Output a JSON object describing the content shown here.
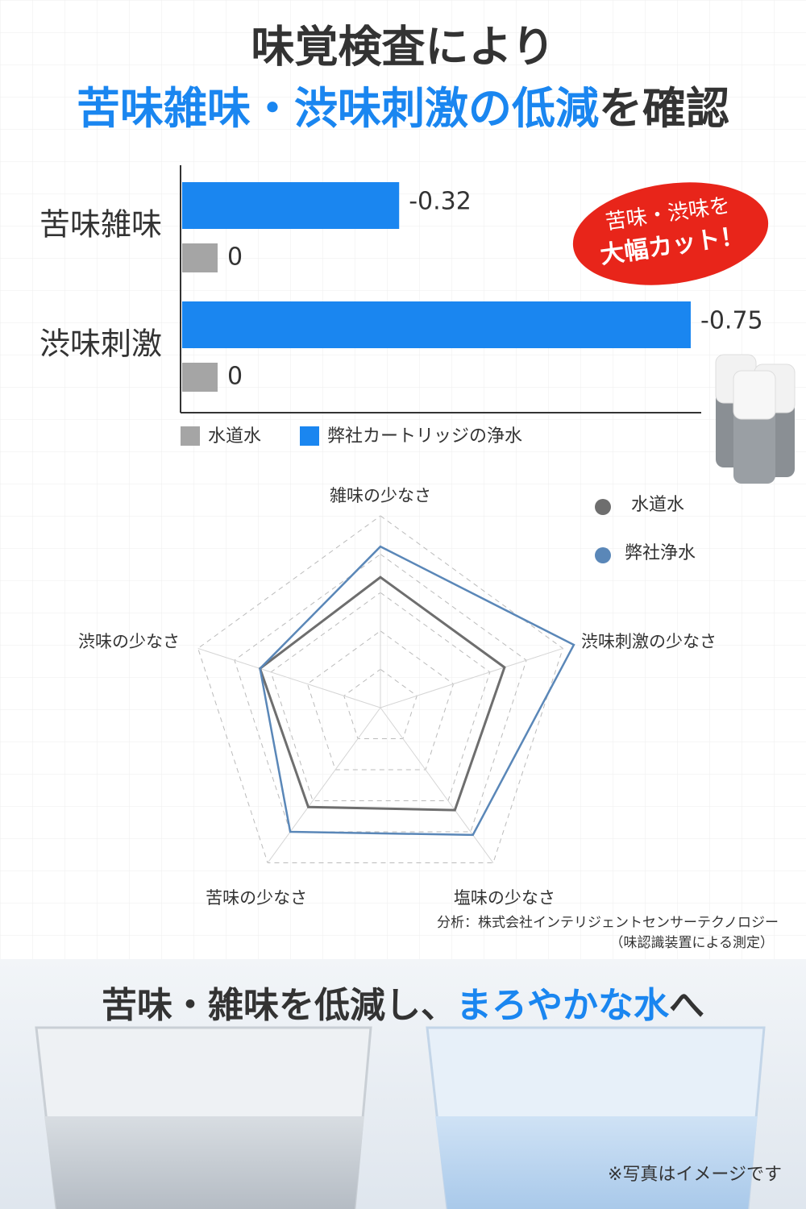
{
  "header": {
    "line1": "味覚検査により",
    "line2_highlight": "苦味雑味・渋味刺激の低減",
    "line2_rest": "を確認"
  },
  "badge": {
    "line1": "苦味・渋味を",
    "line2": "大幅カット！"
  },
  "chart_data": [
    {
      "type": "bar",
      "orientation": "horizontal",
      "categories": [
        "苦味雑味",
        "渋味刺激"
      ],
      "series": [
        {
          "name": "水道水",
          "color": "#a5a5a5",
          "values": [
            0,
            0
          ]
        },
        {
          "name": "弊社カートリッジの浄水",
          "color": "#1a86f0",
          "values": [
            -0.32,
            -0.75
          ]
        }
      ],
      "xlim": [
        0,
        -0.75
      ]
    },
    {
      "type": "radar",
      "categories": [
        "雑味の少なさ",
        "渋味刺激の少なさ",
        "塩味の少なさ",
        "苦味の少なさ",
        "渋味の少なさ"
      ],
      "series": [
        {
          "name": "水道水",
          "color": "#6e6e6e",
          "values": [
            3.4,
            3.4,
            3.3,
            3.2,
            3.3
          ]
        },
        {
          "name": "弊社浄水",
          "color": "#5a87b8",
          "values": [
            4.2,
            5.3,
            4.1,
            4.0,
            3.3
          ]
        }
      ],
      "rlim": [
        0,
        5
      ],
      "rticks": [
        1,
        2,
        3,
        4,
        5
      ]
    }
  ],
  "source": {
    "line1": "分析：株式会社インテリジェントセンサーテクノロジー",
    "line2": "（味認識装置による測定）"
  },
  "footer": {
    "headline_part1": "苦味・雑味を低減し、",
    "headline_highlight": "まろやかな水",
    "headline_part2": "へ",
    "note": "※写真はイメージです"
  }
}
